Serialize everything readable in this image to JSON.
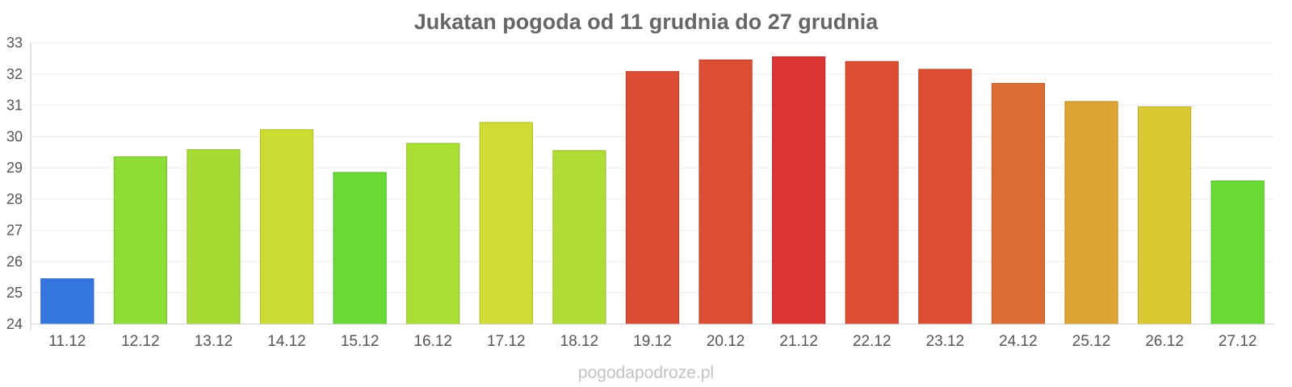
{
  "chart_data": {
    "type": "bar",
    "title": "Jukatan pogoda od 11 grudnia do 27 grudnia",
    "xlabel": "",
    "ylabel": "",
    "ylim": [
      24,
      33
    ],
    "yticks": [
      "24",
      "25",
      "26",
      "27",
      "28",
      "29",
      "30",
      "31",
      "32",
      "33"
    ],
    "grid": true,
    "categories": [
      "11.12",
      "12.12",
      "13.12",
      "14.12",
      "15.12",
      "16.12",
      "17.12",
      "18.12",
      "19.12",
      "20.12",
      "21.12",
      "22.12",
      "23.12",
      "24.12",
      "25.12",
      "26.12",
      "27.12"
    ],
    "values": [
      25.45,
      29.35,
      29.58,
      30.22,
      28.85,
      29.78,
      30.45,
      29.55,
      32.08,
      32.45,
      32.55,
      32.4,
      32.15,
      31.7,
      31.12,
      30.95,
      28.58
    ],
    "colors": [
      "#3476df",
      "#8ddd37",
      "#a7db33",
      "#cddc33",
      "#68da33",
      "#aade33",
      "#d0dc33",
      "#b0dd35",
      "#db4c33",
      "#dc4d33",
      "#da3433",
      "#dc4d33",
      "#dc4e33",
      "#dc6c33",
      "#dca533",
      "#dcc833",
      "#68da33"
    ]
  },
  "watermark": "pogodapodroze.pl"
}
